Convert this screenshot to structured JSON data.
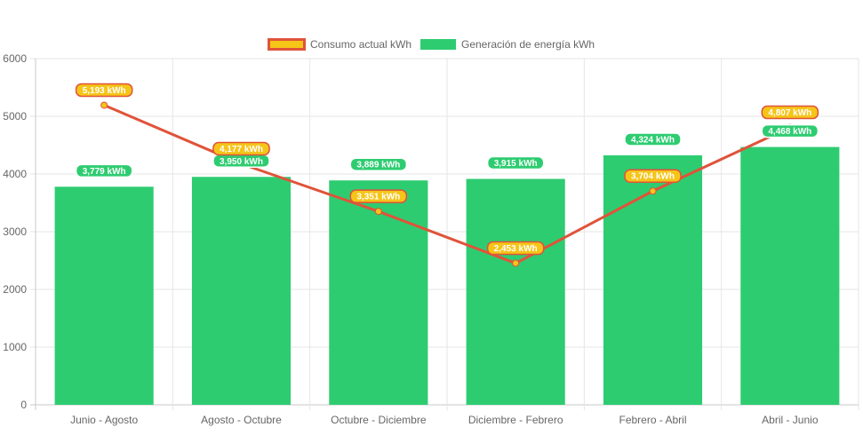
{
  "chart_data": {
    "type": "bar",
    "categories": [
      "Junio - Agosto",
      "Agosto - Octubre",
      "Octubre - Diciembre",
      "Diciembre - Febrero",
      "Febrero - Abril",
      "Abril - Junio"
    ],
    "ylim": [
      0,
      6000
    ],
    "yticks": [
      0,
      1000,
      2000,
      3000,
      4000,
      5000,
      6000
    ],
    "grid": true,
    "legend_position": "top",
    "series": [
      {
        "name": "Consumo actual kWh",
        "type": "line",
        "color": "#e0533a",
        "fill": "#f5c518",
        "values": [
          5193,
          4177,
          3351,
          2453,
          3704,
          4807
        ],
        "labels": [
          "5,193 kWh",
          "4,177 kWh",
          "3,351 kWh",
          "2,453 kWh",
          "3,704 kWh",
          "4,807 kWh"
        ]
      },
      {
        "name": "Generación de energía kWh",
        "type": "bar",
        "color": "#2ecc71",
        "values": [
          3779,
          3950,
          3889,
          3915,
          4324,
          4468
        ],
        "labels": [
          "3,779 kWh",
          "3,950 kWh",
          "3,889 kWh",
          "3,915 kWh",
          "4,324 kWh",
          "4,468 kWh"
        ]
      }
    ]
  }
}
